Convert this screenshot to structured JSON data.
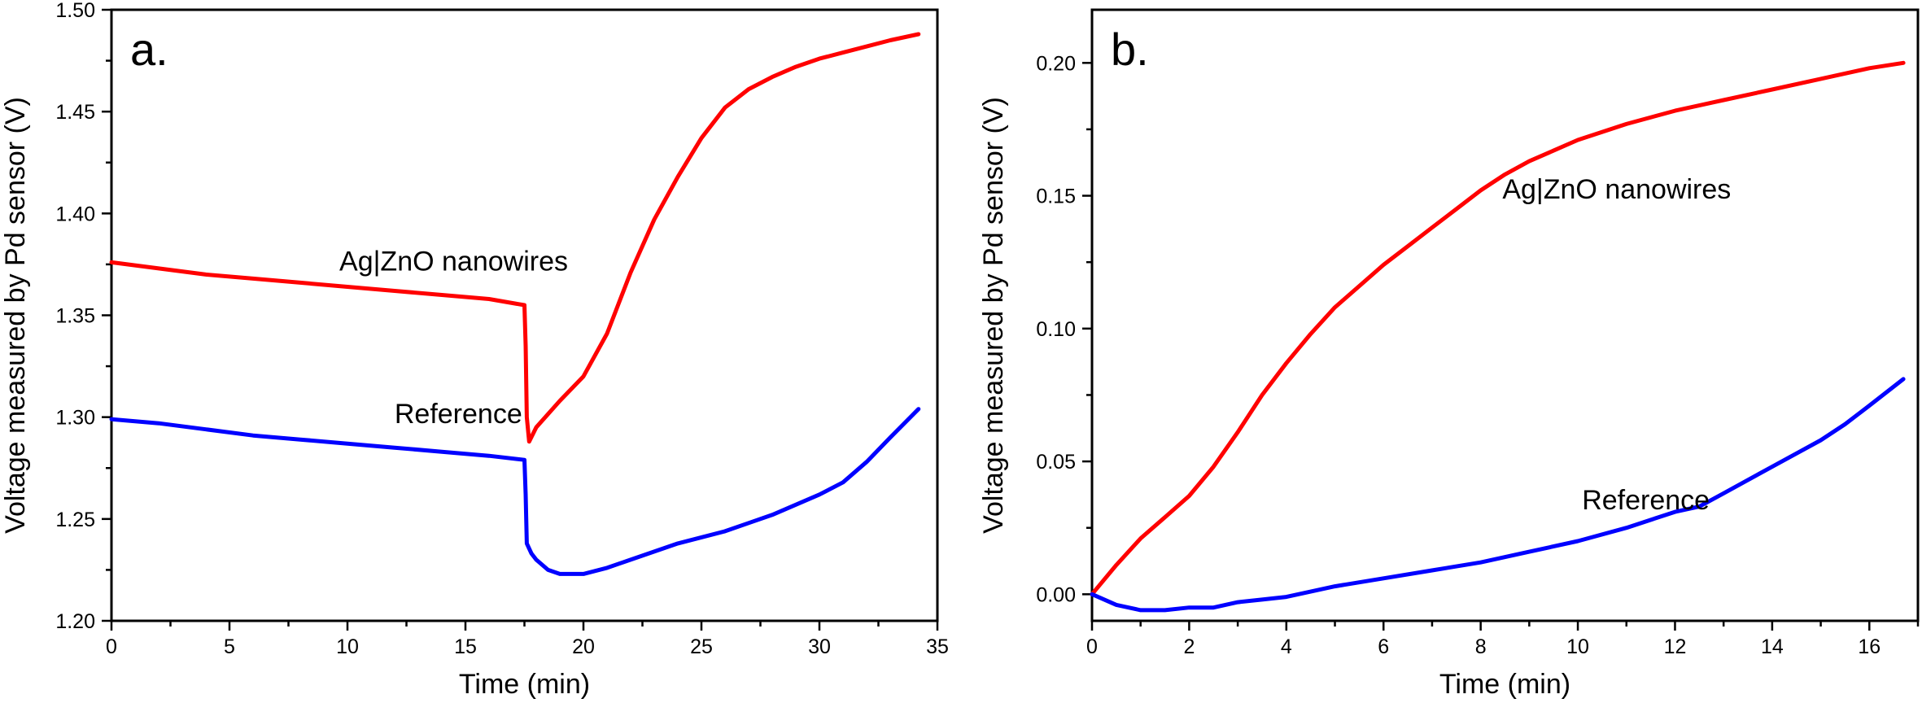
{
  "chart_data": [
    {
      "type": "line",
      "panel_label": "a.",
      "xlabel": "Time (min)",
      "ylabel": "Voltage measured by Pd sensor (V)",
      "xlim": [
        0,
        35
      ],
      "ylim": [
        1.2,
        1.5
      ],
      "xticks": [
        0,
        5,
        10,
        15,
        20,
        25,
        30,
        35
      ],
      "xtick_labels": [
        "0",
        "5",
        "10",
        "15",
        "20",
        "25",
        "30",
        "35"
      ],
      "yticks": [
        1.2,
        1.25,
        1.3,
        1.35,
        1.4,
        1.45,
        1.5
      ],
      "ytick_labels": [
        "1.20",
        "1.25",
        "1.30",
        "1.35",
        "1.40",
        "1.45",
        "1.50"
      ],
      "grid": false,
      "annotations": [
        {
          "text": "Ag|ZnO nanowires",
          "x": 14.5,
          "y": 1.372
        },
        {
          "text": "Reference",
          "x": 14.7,
          "y": 1.297
        }
      ],
      "series": [
        {
          "color": "#ff0000",
          "x": [
            0,
            2,
            4,
            6,
            8,
            10,
            12,
            14,
            16,
            17.5,
            17.55,
            17.6,
            17.7,
            18,
            19,
            20,
            21,
            22,
            23,
            24,
            25,
            26,
            27,
            28,
            29,
            30,
            31,
            32,
            33,
            34.2
          ],
          "y": [
            1.376,
            1.373,
            1.37,
            1.368,
            1.366,
            1.364,
            1.362,
            1.36,
            1.358,
            1.355,
            1.335,
            1.3,
            1.288,
            1.295,
            1.308,
            1.32,
            1.341,
            1.371,
            1.397,
            1.418,
            1.437,
            1.452,
            1.461,
            1.467,
            1.472,
            1.476,
            1.479,
            1.482,
            1.485,
            1.488
          ]
        },
        {
          "color": "#0000ff",
          "x": [
            0,
            2,
            4,
            6,
            8,
            10,
            12,
            14,
            16,
            17.5,
            17.55,
            17.6,
            17.8,
            18,
            18.5,
            19,
            20,
            21,
            22,
            23,
            24,
            25,
            26,
            27,
            28,
            29,
            30,
            31,
            32,
            33,
            34.2
          ],
          "y": [
            1.299,
            1.297,
            1.294,
            1.291,
            1.289,
            1.287,
            1.285,
            1.283,
            1.281,
            1.279,
            1.262,
            1.238,
            1.233,
            1.23,
            1.225,
            1.223,
            1.223,
            1.226,
            1.23,
            1.234,
            1.238,
            1.241,
            1.244,
            1.248,
            1.252,
            1.257,
            1.262,
            1.268,
            1.278,
            1.29,
            1.304
          ]
        }
      ]
    },
    {
      "type": "line",
      "panel_label": "b.",
      "xlabel": "Time (min)",
      "ylabel": "Voltage measured by Pd sensor (V)",
      "xlim": [
        0,
        17
      ],
      "ylim": [
        -0.01,
        0.22
      ],
      "xticks": [
        0,
        2,
        4,
        6,
        8,
        10,
        12,
        14,
        16
      ],
      "xtick_labels": [
        "0",
        "2",
        "4",
        "6",
        "8",
        "10",
        "12",
        "14",
        "16"
      ],
      "yticks": [
        0.0,
        0.05,
        0.1,
        0.15,
        0.2
      ],
      "ytick_labels": [
        "0.00",
        "0.05",
        "0.10",
        "0.15",
        "0.20"
      ],
      "grid": false,
      "annotations": [
        {
          "text": "Ag|ZnO nanowires",
          "x": 10.8,
          "y": 0.149
        },
        {
          "text": "Reference",
          "x": 11.4,
          "y": 0.032
        }
      ],
      "series": [
        {
          "color": "#ff0000",
          "x": [
            0,
            0.5,
            1,
            1.5,
            2,
            2.5,
            3,
            3.5,
            4,
            4.5,
            5,
            5.5,
            6,
            6.5,
            7,
            7.5,
            8,
            8.5,
            9,
            9.5,
            10,
            11,
            12,
            13,
            14,
            15,
            16,
            16.7
          ],
          "y": [
            0.0,
            0.011,
            0.021,
            0.029,
            0.037,
            0.048,
            0.061,
            0.075,
            0.087,
            0.098,
            0.108,
            0.116,
            0.124,
            0.131,
            0.138,
            0.145,
            0.152,
            0.158,
            0.163,
            0.167,
            0.171,
            0.177,
            0.182,
            0.186,
            0.19,
            0.194,
            0.198,
            0.2
          ]
        },
        {
          "color": "#0000ff",
          "x": [
            0,
            0.5,
            1,
            1.5,
            2,
            2.5,
            3,
            3.5,
            4,
            4.5,
            5,
            6,
            7,
            8,
            9,
            10,
            11,
            12,
            12.5,
            13,
            13.5,
            14,
            14.5,
            15,
            15.5,
            16,
            16.7
          ],
          "y": [
            0.0,
            -0.004,
            -0.006,
            -0.006,
            -0.005,
            -0.005,
            -0.003,
            -0.002,
            -0.001,
            0.001,
            0.003,
            0.006,
            0.009,
            0.012,
            0.016,
            0.02,
            0.025,
            0.031,
            0.033,
            0.038,
            0.043,
            0.048,
            0.053,
            0.058,
            0.064,
            0.071,
            0.081
          ]
        }
      ]
    }
  ]
}
